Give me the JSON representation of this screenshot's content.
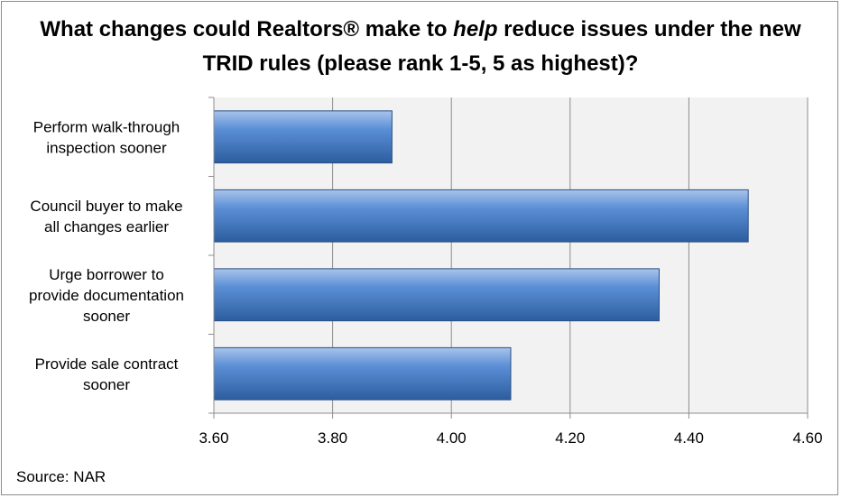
{
  "chart_data": {
    "type": "bar",
    "orientation": "horizontal",
    "title": "What changes could Realtors® make to help reduce issues under the new TRID rules (please rank 1-5, 5 as highest)?",
    "title_parts": {
      "line1_a": "What changes could Realtors® make to ",
      "line1_italic": "help",
      "line1_b": " reduce issues under the new",
      "line2": "TRID rules (please rank 1-5, 5 as highest)?"
    },
    "categories": [
      [
        "Perform walk-through",
        "inspection sooner"
      ],
      [
        "Council buyer to make",
        "all changes earlier"
      ],
      [
        "Urge borrower to",
        "provide documentation",
        "sooner"
      ],
      [
        "Provide sale contract",
        "sooner"
      ]
    ],
    "values": [
      3.9,
      4.5,
      4.35,
      4.1
    ],
    "xlim": [
      3.6,
      4.6
    ],
    "xticks": [
      "3.60",
      "3.80",
      "4.00",
      "4.20",
      "4.40",
      "4.60"
    ],
    "grid": true,
    "legend": "none",
    "bar_color": "#4a7ebb"
  },
  "footer": {
    "source": "Source: NAR"
  }
}
